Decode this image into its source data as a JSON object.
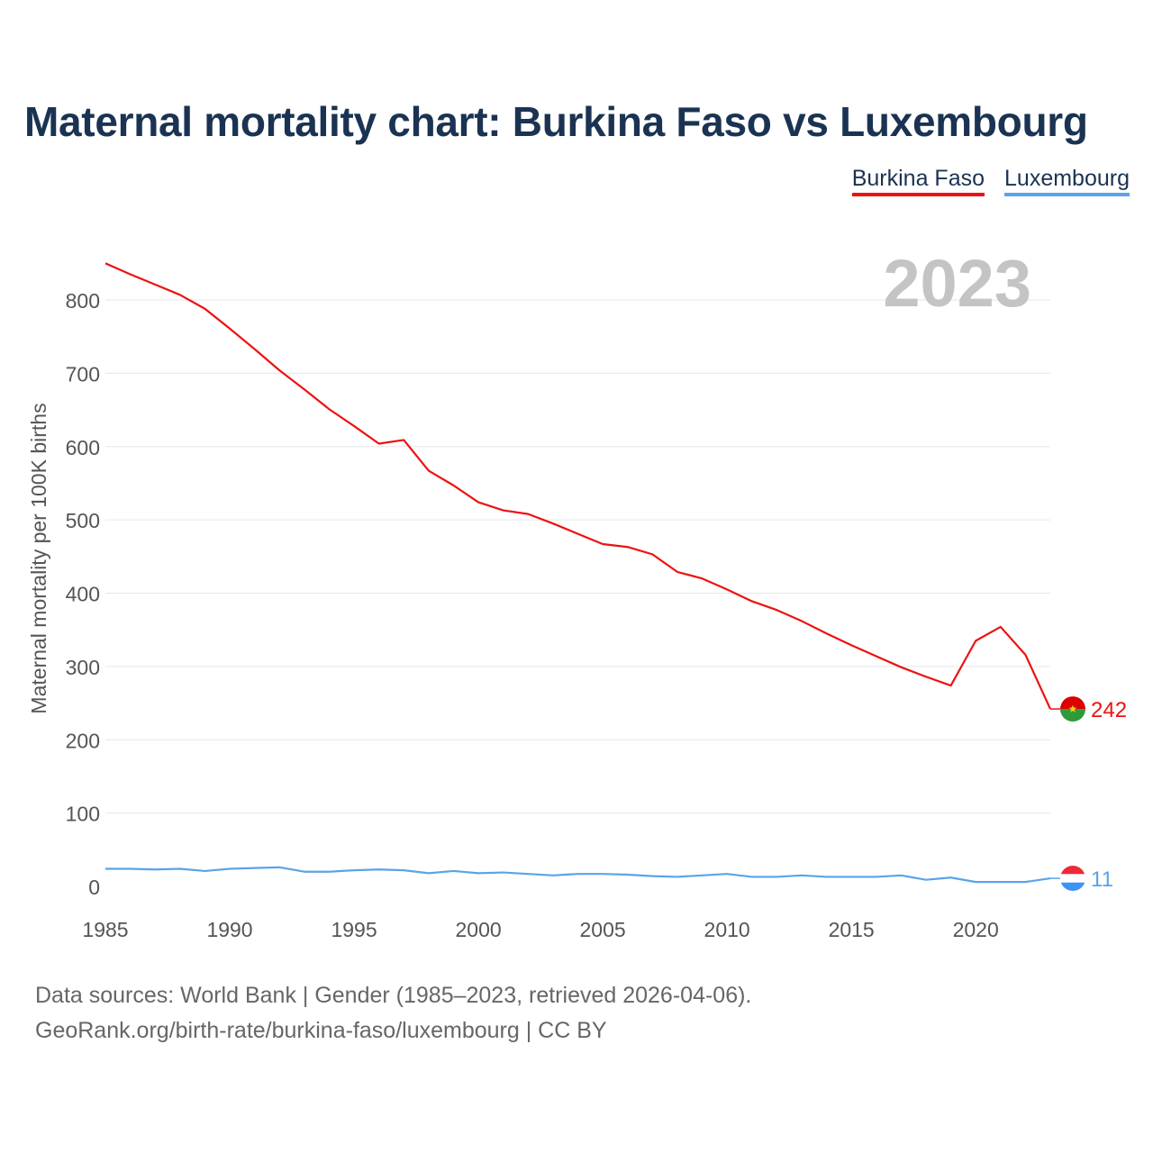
{
  "title": "Maternal mortality chart: Burkina Faso vs Luxembourg",
  "legend": {
    "bf": "Burkina Faso",
    "lu": "Luxembourg"
  },
  "footer": {
    "line1": "Data sources: World Bank | Gender (1985–2023, retrieved 2026-04-06).",
    "line2": "GeoRank.org/birth-rate/burkina-faso/luxembourg | CC BY"
  },
  "chart_data": {
    "type": "line",
    "title": "Maternal mortality chart: Burkina Faso vs Luxembourg",
    "year_label": "2023",
    "ylabel": "Maternal mortality per 100K births",
    "xlabel": "",
    "xlim": [
      1985,
      2023
    ],
    "ylim": [
      0,
      850
    ],
    "yticks": [
      0,
      100,
      200,
      300,
      400,
      500,
      600,
      700,
      800
    ],
    "xticks": [
      1985,
      1990,
      1995,
      2000,
      2005,
      2010,
      2015,
      2020
    ],
    "x": [
      1985,
      1986,
      1987,
      1988,
      1989,
      1990,
      1991,
      1992,
      1993,
      1994,
      1995,
      1996,
      1997,
      1998,
      1999,
      2000,
      2001,
      2002,
      2003,
      2004,
      2005,
      2006,
      2007,
      2008,
      2009,
      2010,
      2011,
      2012,
      2013,
      2014,
      2015,
      2016,
      2017,
      2018,
      2019,
      2020,
      2021,
      2022,
      2023
    ],
    "series": [
      {
        "name": "Burkina Faso",
        "color": "#ee1111",
        "end_label": "242",
        "values": [
          850,
          835,
          821,
          807,
          788,
          761,
          733,
          704,
          678,
          651,
          628,
          604,
          609,
          567,
          547,
          524,
          513,
          508,
          495,
          481,
          467,
          463,
          453,
          429,
          420,
          405,
          389,
          377,
          362,
          345,
          329,
          314,
          299,
          286,
          274,
          335,
          354,
          316,
          242
        ]
      },
      {
        "name": "Luxembourg",
        "color": "#5ba3e8",
        "end_label": "11",
        "values": [
          24,
          24,
          23,
          24,
          21,
          24,
          25,
          26,
          20,
          20,
          22,
          23,
          22,
          18,
          21,
          18,
          19,
          17,
          15,
          17,
          17,
          16,
          14,
          13,
          15,
          17,
          13,
          13,
          15,
          13,
          13,
          13,
          15,
          9,
          12,
          6,
          6,
          6,
          11
        ]
      }
    ]
  }
}
